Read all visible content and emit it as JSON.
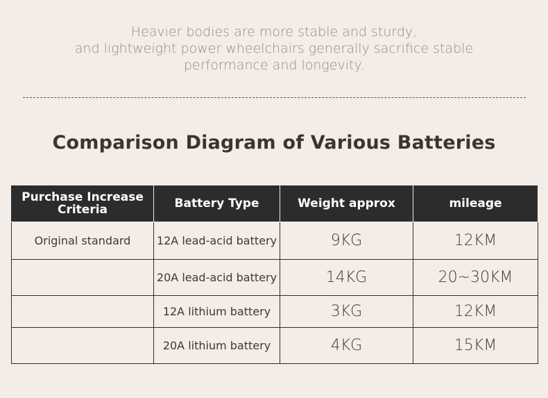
{
  "intro": {
    "line1": "Heavier bodies are more stable and sturdy,",
    "line2": "and lightweight power wheelchairs generally sacrifice stable",
    "line3": "performance and longevity."
  },
  "title": "Comparison Diagram of Various Batteries",
  "table": {
    "headers": {
      "criteria_line1": "Purchase Increase",
      "criteria_line2": "Criteria",
      "battery_type": "Battery Type",
      "weight": "Weight approx",
      "mileage": "mileage"
    },
    "rows": [
      {
        "criteria": "Original standard",
        "type": "12A lead-acid battery",
        "weight": "9KG",
        "mileage": "12KM"
      },
      {
        "criteria": "",
        "type": "20A lead-acid battery",
        "weight": "14KG",
        "mileage": "20~30KM"
      },
      {
        "criteria": "",
        "type": "12A lithium battery",
        "weight": "3KG",
        "mileage": "12KM"
      },
      {
        "criteria": "",
        "type": "20A lithium battery",
        "weight": "4KG",
        "mileage": "15KM"
      }
    ]
  }
}
